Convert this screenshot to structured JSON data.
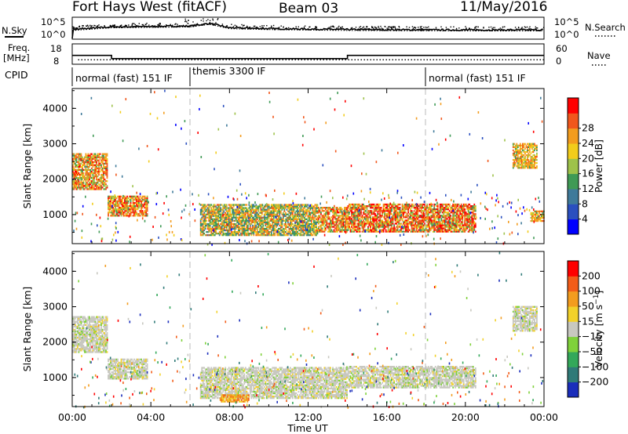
{
  "header": {
    "station": "Fort Hays West (fitACF)",
    "beam": "Beam 03",
    "date": "11/May/2016"
  },
  "noise_panel": {
    "left_label": "N.Sky",
    "right_label": "N.Search",
    "left_ticks": [
      "10^5",
      "10^0"
    ],
    "right_ticks": [
      "10^5",
      "10^0"
    ]
  },
  "freq_panel": {
    "left_label_1": "Freq.",
    "left_label_2": "[MHz]",
    "left_ticks": [
      "18",
      "8"
    ],
    "right_label": "Nave",
    "right_ticks": [
      "60",
      "0"
    ]
  },
  "cpid": {
    "label": "CPID",
    "segments": [
      {
        "label": "normal (fast) 151 IF",
        "start_hour": 0
      },
      {
        "label": "themis 3300 IF",
        "start_hour": 6
      },
      {
        "label": "normal (fast) 151 IF",
        "start_hour": 18
      }
    ]
  },
  "power_panel": {
    "ylabel": "Slant Range [km]",
    "yticks": [
      "1000",
      "2000",
      "3000",
      "4000"
    ],
    "colorbar_label": "Power [dB]",
    "colorbar_ticks": [
      "4",
      "8",
      "12",
      "16",
      "20",
      "24",
      "28"
    ],
    "colors": [
      "#0000ff",
      "#2a4fbf",
      "#3f7a9a",
      "#3f9a55",
      "#9ec24a",
      "#f2cc1b",
      "#f39c1e",
      "#f1571c",
      "#ff0000"
    ]
  },
  "velocity_panel": {
    "ylabel": "Slant Range [km]",
    "yticks": [
      "1000",
      "2000",
      "3000",
      "4000"
    ],
    "colorbar_label": "Velocity [m s^-1]",
    "colorbar_ticks": [
      "200",
      "100",
      "50",
      "15",
      "-15",
      "-50",
      "-100",
      "-200"
    ],
    "colors": [
      "#1a2dbb",
      "#2f7a78",
      "#33a85a",
      "#7fd13a",
      "#c8c8c0",
      "#f2d12a",
      "#f39c1e",
      "#f35c18",
      "#ff0000"
    ]
  },
  "time_axis": {
    "xlabel": "Time UT",
    "ticks": [
      "00:00",
      "04:00",
      "08:00",
      "12:00",
      "16:00",
      "20:00",
      "00:00"
    ]
  },
  "chart_data": {
    "type": "heatmap",
    "title": "Fort Hays West (fitACF)",
    "subtitle": "Beam 03",
    "date": "11/May/2016",
    "x_range_hours": [
      0,
      24
    ],
    "x_tick_labels": [
      "00:00",
      "04:00",
      "08:00",
      "12:00",
      "16:00",
      "20:00",
      "00:00"
    ],
    "xlabel": "Time UT",
    "ylabel": "Slant Range [km]",
    "ylim": [
      180,
      4560
    ],
    "y_tick_labels": [
      "1000",
      "2000",
      "3000",
      "4000"
    ],
    "frequency_MHz": [
      {
        "start_hour": 0,
        "end_hour": 2,
        "value": 12
      },
      {
        "start_hour": 2,
        "end_hour": 14,
        "value": 10
      },
      {
        "start_hour": 14,
        "end_hour": 24,
        "value": 12
      }
    ],
    "nave_approx": 4,
    "noise_levels_log10": [
      {
        "hour": 0,
        "value": 2.2
      },
      {
        "hour": 2,
        "value": 2.8
      },
      {
        "hour": 4,
        "value": 2.9
      },
      {
        "hour": 6,
        "value": 3.0
      },
      {
        "hour": 7,
        "value": 3.6
      },
      {
        "hour": 8,
        "value": 2.6
      },
      {
        "hour": 10,
        "value": 2.4
      },
      {
        "hour": 14,
        "value": 2.2
      },
      {
        "hour": 20,
        "value": 2.1
      },
      {
        "hour": 24,
        "value": 2.1
      }
    ],
    "power_scale_dB": [
      0,
      30
    ],
    "velocity_scale_ms": [
      -200,
      200
    ],
    "power_regions": [
      {
        "t": [
          0,
          1.8
        ],
        "r": [
          1700,
          2700
        ],
        "level": "orange-red"
      },
      {
        "t": [
          1.8,
          3.8
        ],
        "r": [
          950,
          1500
        ],
        "level": "orange-red"
      },
      {
        "t": [
          6.5,
          12.5
        ],
        "r": [
          400,
          1300
        ],
        "level": "green-orange"
      },
      {
        "t": [
          12.5,
          14
        ],
        "r": [
          500,
          1200
        ],
        "level": "orange-red"
      },
      {
        "t": [
          14,
          20.5
        ],
        "r": [
          500,
          1300
        ],
        "level": "red-orange"
      },
      {
        "t": [
          22.4,
          23.6
        ],
        "r": [
          2300,
          3000
        ],
        "level": "orange"
      },
      {
        "t": [
          23.3,
          24
        ],
        "r": [
          800,
          1100
        ],
        "level": "orange"
      }
    ],
    "velocity_regions": [
      {
        "t": [
          0,
          1.8
        ],
        "r": [
          1700,
          2700
        ],
        "level": "grey"
      },
      {
        "t": [
          1.8,
          3.8
        ],
        "r": [
          950,
          1500
        ],
        "level": "grey"
      },
      {
        "t": [
          6.5,
          14
        ],
        "r": [
          400,
          1300
        ],
        "level": "grey"
      },
      {
        "t": [
          7.5,
          9
        ],
        "r": [
          300,
          500
        ],
        "level": "orange"
      },
      {
        "t": [
          14,
          20.5
        ],
        "r": [
          700,
          1300
        ],
        "level": "grey"
      },
      {
        "t": [
          22.4,
          23.6
        ],
        "r": [
          2300,
          3000
        ],
        "level": "grey"
      }
    ]
  }
}
